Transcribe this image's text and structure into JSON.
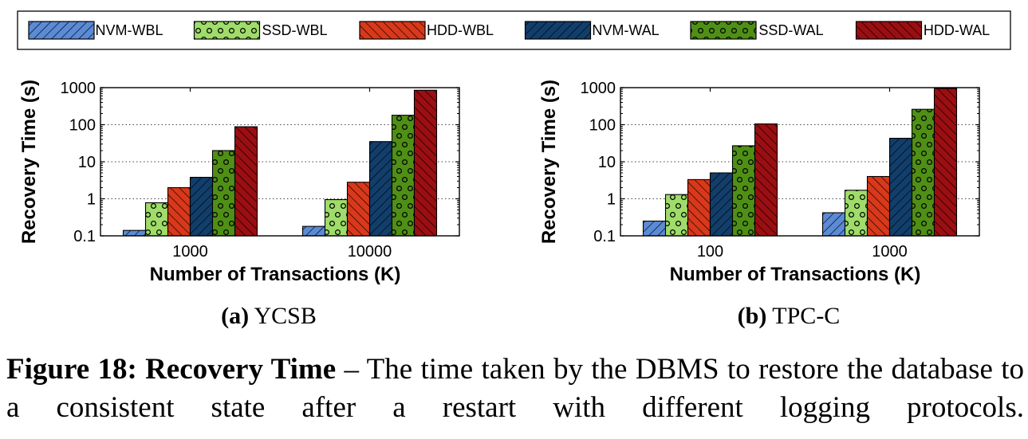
{
  "legend": [
    {
      "label": "NVM-WBL",
      "color": "#5b8ad6",
      "pattern": "hatch-fwd"
    },
    {
      "label": "SSD-WBL",
      "color": "#9fdc6a",
      "pattern": "dots"
    },
    {
      "label": "HDD-WBL",
      "color": "#d9381a",
      "pattern": "hatch-back"
    },
    {
      "label": "NVM-WAL",
      "color": "#123e6b",
      "pattern": "hatch-fwd"
    },
    {
      "label": "SSD-WAL",
      "color": "#4f8f16",
      "pattern": "dots"
    },
    {
      "label": "HDD-WAL",
      "color": "#9b0e12",
      "pattern": "hatch-back"
    }
  ],
  "subplots": [
    {
      "tag": "(a)",
      "name": "YCSB"
    },
    {
      "tag": "(b)",
      "name": "TPC-C"
    }
  ],
  "caption": {
    "label": "Figure 18: Recovery Time",
    "dash": " – ",
    "text": "The time taken by the DBMS to restore the database to a consistent state after a restart with different logging protocols."
  },
  "chart_data": [
    {
      "type": "bar",
      "title": "YCSB",
      "xlabel": "Number of Transactions (K)",
      "ylabel": "Recovery Time (s)",
      "yscale": "log",
      "ylim": [
        0.1,
        1000
      ],
      "yticks": [
        "0.1",
        "1",
        "10",
        "100",
        "1000"
      ],
      "ytick_values": [
        0.1,
        1,
        10,
        100,
        1000
      ],
      "grid": "horizontal dotted",
      "categories": [
        "1000",
        "10000"
      ],
      "series": [
        {
          "name": "NVM-WBL",
          "values": [
            0.14,
            0.18
          ]
        },
        {
          "name": "SSD-WBL",
          "values": [
            0.78,
            0.95
          ]
        },
        {
          "name": "HDD-WBL",
          "values": [
            2.0,
            2.8
          ]
        },
        {
          "name": "NVM-WAL",
          "values": [
            3.8,
            35
          ]
        },
        {
          "name": "SSD-WAL",
          "values": [
            20,
            180
          ]
        },
        {
          "name": "HDD-WAL",
          "values": [
            88,
            850
          ]
        }
      ]
    },
    {
      "type": "bar",
      "title": "TPC-C",
      "xlabel": "Number of Transactions (K)",
      "ylabel": "Recovery Time (s)",
      "yscale": "log",
      "ylim": [
        0.1,
        1000
      ],
      "yticks": [
        "0.1",
        "1",
        "10",
        "100",
        "1000"
      ],
      "ytick_values": [
        0.1,
        1,
        10,
        100,
        1000
      ],
      "grid": "horizontal dotted",
      "categories": [
        "100",
        "1000"
      ],
      "series": [
        {
          "name": "NVM-WBL",
          "values": [
            0.25,
            0.42
          ]
        },
        {
          "name": "SSD-WBL",
          "values": [
            1.3,
            1.7
          ]
        },
        {
          "name": "HDD-WBL",
          "values": [
            3.3,
            4.0
          ]
        },
        {
          "name": "NVM-WAL",
          "values": [
            5.0,
            43
          ]
        },
        {
          "name": "SSD-WAL",
          "values": [
            27,
            260
          ]
        },
        {
          "name": "HDD-WAL",
          "values": [
            105,
            950
          ]
        }
      ]
    }
  ]
}
